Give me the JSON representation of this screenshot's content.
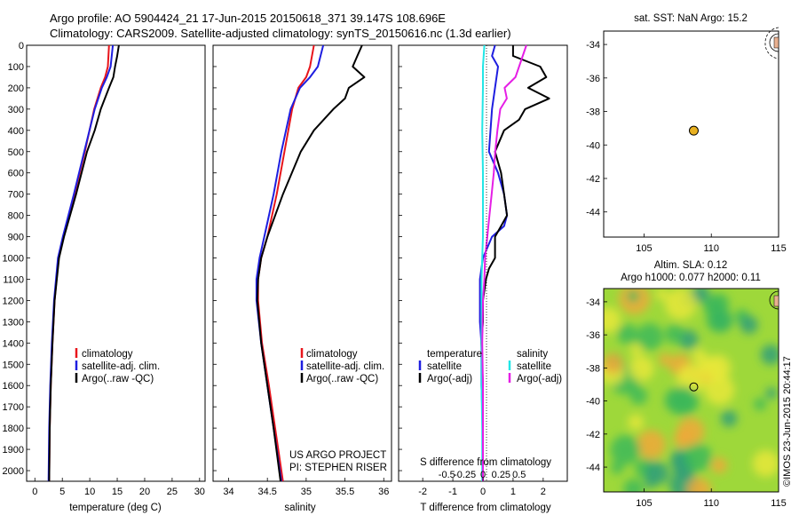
{
  "header": {
    "line1": "Argo profile: AO 5904424_21 17-Jun-2015 20150618_371 39.147S 108.696E",
    "line2": "Climatology: CARS2009. Satellite-adjusted climatology: synTS_20150616.nc (1.3d earlier)"
  },
  "colors": {
    "climatology": "#e8151b",
    "satellite": "#1e1ee0",
    "argo": "#000000",
    "cyan": "#22e6e6",
    "magenta": "#e51ee5",
    "marker": "#e8b020"
  },
  "depth_ticks": [
    "0",
    "100",
    "200",
    "300",
    "400",
    "500",
    "600",
    "700",
    "800",
    "900",
    "1000",
    "1100",
    "1200",
    "1300",
    "1400",
    "1500",
    "1600",
    "1700",
    "1800",
    "1900",
    "2000"
  ],
  "credit": {
    "project": "US ARGO PROJECT",
    "pi": "PI: STEPHEN RISER",
    "imos": "©IMOS 23-Jun-2015 20:44:17"
  },
  "chart_data": [
    {
      "type": "line",
      "xlabel": "temperature (deg C)",
      "ylim": [
        0,
        2050
      ],
      "xlim": [
        -1.5,
        31
      ],
      "xticks": [
        "0",
        "5",
        "10",
        "15",
        "20",
        "25",
        "30"
      ],
      "legend": [
        {
          "label": "climatology",
          "color": "#e8151b"
        },
        {
          "label": "satellite-adj. clim.",
          "color": "#1e1ee0"
        },
        {
          "label": "Argo(..raw -QC)",
          "color": "#000000"
        }
      ],
      "series": [
        {
          "name": "climatology",
          "depth": [
            0,
            100,
            150,
            200,
            300,
            500,
            700,
            900,
            1000,
            1200,
            1400,
            1600,
            1800,
            2050
          ],
          "values": [
            13.5,
            13.3,
            12.8,
            12.0,
            10.8,
            9.1,
            7.2,
            5.2,
            4.3,
            3.6,
            3.2,
            2.9,
            2.7,
            2.6
          ]
        },
        {
          "name": "satellite-adj. clim.",
          "depth": [
            0,
            100,
            150,
            200,
            300,
            500,
            700,
            900,
            1000,
            1200,
            1400,
            1600,
            1800,
            2050
          ],
          "values": [
            14.2,
            13.8,
            13.1,
            12.2,
            10.9,
            9.0,
            7.1,
            5.1,
            4.2,
            3.5,
            3.1,
            2.8,
            2.6,
            2.5
          ]
        },
        {
          "name": "Argo(..raw -QC)",
          "depth": [
            0,
            50,
            100,
            150,
            200,
            300,
            400,
            500,
            700,
            900,
            1000,
            1200,
            1400,
            1600,
            1800,
            2050
          ],
          "values": [
            15.3,
            15.0,
            14.6,
            14.3,
            13.5,
            12.0,
            10.9,
            9.5,
            7.5,
            5.3,
            4.4,
            3.6,
            3.2,
            2.9,
            2.7,
            2.6
          ]
        }
      ]
    },
    {
      "type": "line",
      "xlabel": "salinity",
      "ylim": [
        0,
        2050
      ],
      "xlim": [
        33.8,
        36.1
      ],
      "xticks": [
        "34",
        "34.5",
        "35",
        "35.5",
        "36"
      ],
      "legend": [
        {
          "label": "climatology",
          "color": "#e8151b"
        },
        {
          "label": "satellite-adj. clim.",
          "color": "#1e1ee0"
        },
        {
          "label": "Argo(..raw -QC)",
          "color": "#000000"
        }
      ],
      "series": [
        {
          "name": "climatology",
          "depth": [
            0,
            100,
            150,
            200,
            300,
            500,
            700,
            900,
            1000,
            1100,
            1200,
            1400,
            1600,
            1800,
            2050
          ],
          "values": [
            35.1,
            35.05,
            35.0,
            34.9,
            34.82,
            34.72,
            34.62,
            34.5,
            34.42,
            34.38,
            34.38,
            34.43,
            34.52,
            34.6,
            34.7
          ]
        },
        {
          "name": "satellite-adj. clim.",
          "depth": [
            0,
            100,
            150,
            200,
            300,
            500,
            700,
            900,
            1000,
            1100,
            1200,
            1400,
            1600,
            1800,
            2050
          ],
          "values": [
            35.22,
            35.15,
            35.05,
            34.92,
            34.8,
            34.68,
            34.58,
            34.46,
            34.4,
            34.36,
            34.36,
            34.42,
            34.5,
            34.58,
            34.68
          ]
        },
        {
          "name": "Argo(..raw -QC)",
          "depth": [
            0,
            50,
            100,
            150,
            200,
            250,
            300,
            400,
            500,
            700,
            900,
            1000,
            1100,
            1200,
            1400,
            1600,
            1800,
            2050
          ],
          "values": [
            35.72,
            35.66,
            35.6,
            35.75,
            35.55,
            35.5,
            35.35,
            35.1,
            34.93,
            34.7,
            34.5,
            34.42,
            34.38,
            34.37,
            34.42,
            34.5,
            34.58,
            34.67
          ]
        }
      ]
    },
    {
      "type": "line",
      "xlabel": "T difference from climatology",
      "xlabel2": "S difference from climatology",
      "ylim": [
        0,
        2050
      ],
      "xlim": [
        -2.8,
        2.8
      ],
      "xticks": [
        "-2",
        "-1",
        "0",
        "1",
        "2"
      ],
      "xticks2": [
        "-0.5",
        "-0.25",
        "0",
        "0.25",
        "0.5"
      ],
      "legend_headers": [
        "temperature",
        "salinity"
      ],
      "legend": [
        {
          "label": "satellite",
          "color": "#1e1ee0"
        },
        {
          "label": "Argo(-adj)",
          "color": "#000000"
        },
        {
          "label": "satellite",
          "color": "#22e6e6"
        },
        {
          "label": "Argo(-adj)",
          "color": "#e51ee5"
        }
      ],
      "series": [
        {
          "name": "T satellite",
          "depth": [
            0,
            50,
            100,
            200,
            300,
            500,
            600,
            700,
            800,
            850,
            900,
            1000,
            1100,
            1200,
            1300,
            1400,
            1600,
            1800,
            2050
          ],
          "values": [
            0.4,
            0.3,
            0.5,
            0.4,
            0.3,
            0.2,
            0.5,
            0.7,
            0.8,
            0.7,
            0.3,
            0.0,
            -0.1,
            -0.1,
            -0.1,
            -0.05,
            -0.05,
            0.0,
            0.0
          ]
        },
        {
          "name": "T Argo(-adj)",
          "depth": [
            0,
            50,
            100,
            150,
            200,
            250,
            300,
            350,
            400,
            500,
            600,
            700,
            800,
            850,
            900,
            1000,
            1050,
            1100,
            1200,
            1300,
            1400,
            1600,
            1800,
            2050
          ],
          "values": [
            1.0,
            1.0,
            1.9,
            2.1,
            1.5,
            2.2,
            1.4,
            1.2,
            0.7,
            0.4,
            0.6,
            0.7,
            0.8,
            0.6,
            0.4,
            0.4,
            0.2,
            0.1,
            0.0,
            0.0,
            -0.05,
            0.0,
            0.0,
            0.0
          ]
        },
        {
          "name": "S satellite",
          "depth": [
            0,
            100,
            200,
            400,
            600,
            800,
            900,
            1000,
            1100,
            1200,
            1400,
            1600,
            1800,
            2050
          ],
          "values": [
            0.02,
            0.0,
            0.0,
            -0.01,
            0.0,
            0.0,
            0.0,
            -0.01,
            -0.02,
            -0.02,
            -0.02,
            -0.02,
            -0.01,
            -0.01
          ]
        },
        {
          "name": "S Argo(-adj)",
          "depth": [
            0,
            50,
            100,
            150,
            200,
            250,
            300,
            400,
            500,
            600,
            700,
            800,
            900,
            1000,
            1100,
            1200,
            1400,
            1600,
            1800,
            2050
          ],
          "values": [
            0.6,
            0.55,
            0.5,
            0.45,
            0.3,
            0.33,
            0.24,
            0.2,
            0.17,
            0.15,
            0.12,
            0.09,
            0.06,
            0.03,
            0.02,
            0.0,
            -0.01,
            0.0,
            0.0,
            0.0
          ]
        }
      ]
    },
    {
      "type": "scatter",
      "title": "sat. SST: NaN Argo: 15.2",
      "xlim": [
        102,
        115
      ],
      "ylim": [
        -45.5,
        -33.2
      ],
      "xticks": [
        "105",
        "110",
        "115"
      ],
      "yticks": [
        "-34",
        "-36",
        "-38",
        "-40",
        "-42",
        "-44"
      ],
      "points": [
        {
          "x": 108.696,
          "y": -39.147
        }
      ]
    },
    {
      "type": "heatmap",
      "title1": "Altim. SLA: 0.12",
      "title2": "Argo h1000: 0.077 h2000: 0.11",
      "xlim": [
        102,
        115
      ],
      "ylim": [
        -45.5,
        -33.2
      ],
      "xticks": [
        "105",
        "110",
        "115"
      ],
      "yticks": [
        "-34",
        "-36",
        "-38",
        "-40",
        "-42",
        "-44"
      ],
      "points": [
        {
          "x": 108.696,
          "y": -39.147
        }
      ]
    }
  ]
}
